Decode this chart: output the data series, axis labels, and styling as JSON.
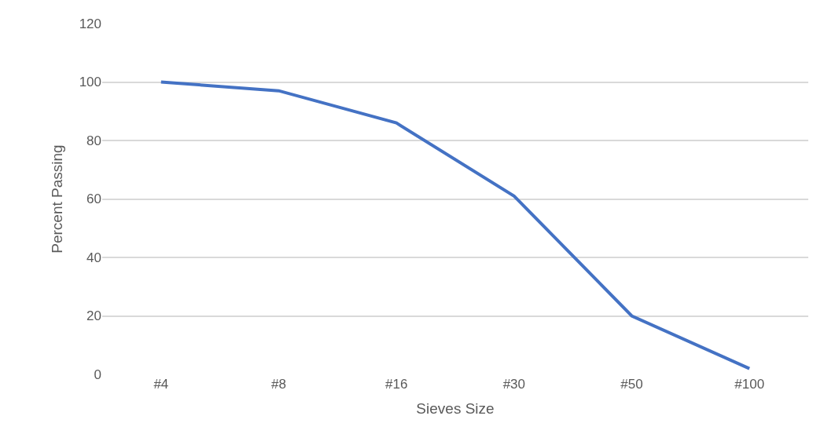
{
  "chart_data": {
    "type": "line",
    "xlabel": "Sieves Size",
    "ylabel": "Percent Passing",
    "categories": [
      "#4",
      "#8",
      "#16",
      "#30",
      "#50",
      "#100"
    ],
    "series": [
      {
        "color": "#4472c4",
        "values": [
          100,
          97,
          86,
          61,
          20,
          2
        ]
      }
    ],
    "ylim": [
      0,
      120
    ],
    "yticks": [
      0,
      20,
      40,
      60,
      80,
      100,
      120
    ],
    "grid": "y",
    "marker": "none",
    "line_style": "solid"
  }
}
